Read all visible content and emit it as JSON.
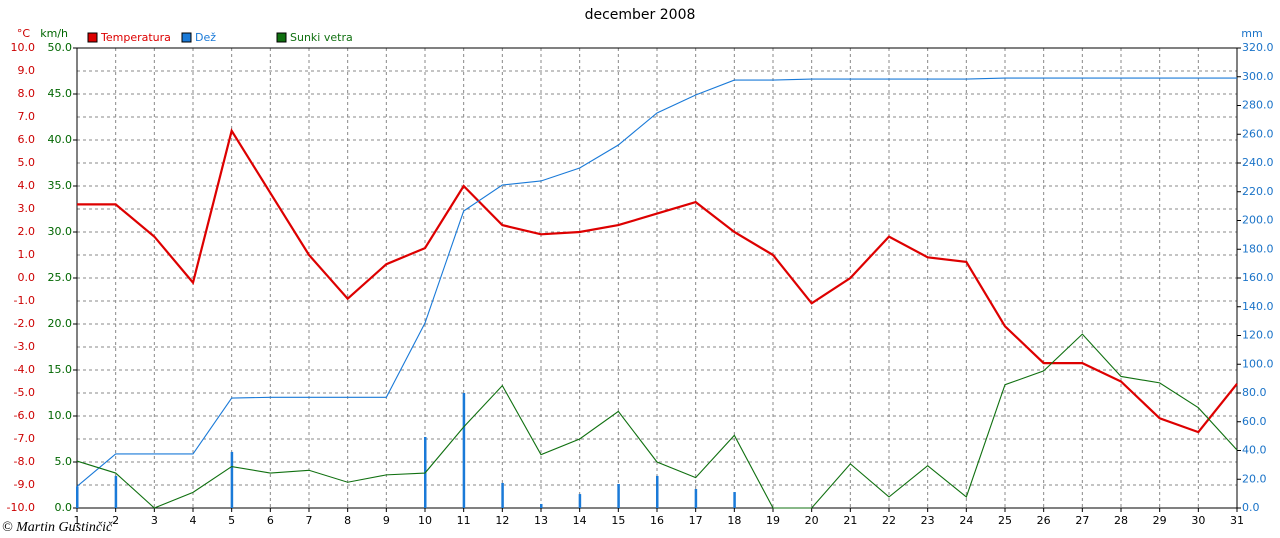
{
  "chart_data": {
    "type": "line",
    "title": "december 2008",
    "ylabel": "°C",
    "y2label": "km/h",
    "y3label": "mm",
    "copyright": "© Martin Gustinčič",
    "grid": true,
    "categories": [
      "1",
      "2",
      "3",
      "4",
      "5",
      "6",
      "7",
      "8",
      "9",
      "10",
      "11",
      "12",
      "13",
      "14",
      "15",
      "16",
      "17",
      "18",
      "19",
      "20",
      "21",
      "22",
      "23",
      "24",
      "25",
      "26",
      "27",
      "28",
      "29",
      "30",
      "31"
    ],
    "ylim": [
      -10,
      10
    ],
    "yticks": [
      {
        "value": -10,
        "label": "-10.0"
      },
      {
        "value": -9,
        "label": "-9.0"
      },
      {
        "value": -8,
        "label": "-8.0"
      },
      {
        "value": -7,
        "label": "-7.0"
      },
      {
        "value": -6,
        "label": "-6.0"
      },
      {
        "value": -5,
        "label": "-5.0"
      },
      {
        "value": -4,
        "label": "-4.0"
      },
      {
        "value": -3,
        "label": "-3.0"
      },
      {
        "value": -2,
        "label": "-2.0"
      },
      {
        "value": -1,
        "label": "-1.0"
      },
      {
        "value": 0,
        "label": "0.0"
      },
      {
        "value": 1,
        "label": "1.0"
      },
      {
        "value": 2,
        "label": "2.0"
      },
      {
        "value": 3,
        "label": "3.0"
      },
      {
        "value": 4,
        "label": "4.0"
      },
      {
        "value": 5,
        "label": "5.0"
      },
      {
        "value": 6,
        "label": "6.0"
      },
      {
        "value": 7,
        "label": "7.0"
      },
      {
        "value": 8,
        "label": "8.0"
      },
      {
        "value": 9,
        "label": "9.0"
      },
      {
        "value": 10,
        "label": "10.0"
      }
    ],
    "y2lim": [
      0,
      50
    ],
    "y2ticks": [
      {
        "value": 0,
        "label": "0.0"
      },
      {
        "value": 5,
        "label": "5.0"
      },
      {
        "value": 10,
        "label": "10.0"
      },
      {
        "value": 15,
        "label": "15.0"
      },
      {
        "value": 20,
        "label": "20.0"
      },
      {
        "value": 25,
        "label": "25.0"
      },
      {
        "value": 30,
        "label": "30.0"
      },
      {
        "value": 35,
        "label": "35.0"
      },
      {
        "value": 40,
        "label": "40.0"
      },
      {
        "value": 45,
        "label": "45.0"
      },
      {
        "value": 50,
        "label": "50.0"
      }
    ],
    "y3lim": [
      0,
      320
    ],
    "y3ticks": [
      {
        "value": 0,
        "label": "0.0"
      },
      {
        "value": 20,
        "label": "20.0"
      },
      {
        "value": 40,
        "label": "40.0"
      },
      {
        "value": 60,
        "label": "60.0"
      },
      {
        "value": 80,
        "label": "80.0"
      },
      {
        "value": 100,
        "label": "100.0"
      },
      {
        "value": 120,
        "label": "120.0"
      },
      {
        "value": 140,
        "label": "140.0"
      },
      {
        "value": 160,
        "label": "160.0"
      },
      {
        "value": 180,
        "label": "180.0"
      },
      {
        "value": 200,
        "label": "200.0"
      },
      {
        "value": 220,
        "label": "220.0"
      },
      {
        "value": 240,
        "label": "240.0"
      },
      {
        "value": 260,
        "label": "260.0"
      },
      {
        "value": 280,
        "label": "280.0"
      },
      {
        "value": 300,
        "label": "300.0"
      },
      {
        "value": 320,
        "label": "320.0"
      }
    ],
    "axis_colors": {
      "y": "#cc0000",
      "y2": "#006600",
      "y3": "#1a73c8"
    },
    "series": [
      {
        "name": "Temperatura",
        "color": "#dd0000",
        "axis": "y",
        "values": [
          3.2,
          3.2,
          1.8,
          -0.2,
          6.4,
          3.7,
          1.0,
          -0.9,
          0.6,
          1.3,
          4.0,
          2.3,
          1.9,
          2.0,
          2.3,
          2.8,
          3.3,
          2.0,
          1.0,
          -1.1,
          0.0,
          1.8,
          0.9,
          0.7,
          -2.1,
          -3.7,
          -3.7,
          -4.5,
          -6.1,
          -6.7,
          -4.6
        ]
      },
      {
        "name": "Dež",
        "color": "#1a7ad8",
        "axis": "y3",
        "values": [
          15,
          37.6,
          37.6,
          37.6,
          76.5,
          77,
          77,
          77,
          77,
          128.7,
          206.6,
          224.7,
          227.5,
          236.5,
          252.5,
          274.8,
          287.3,
          297.7,
          297.7,
          298.4,
          298.4,
          298.4,
          298.4,
          298.4,
          299.1,
          299.1,
          299.1,
          299.1,
          299.1,
          299.1,
          299.1
        ],
        "bar_values": [
          15,
          22.3,
          0,
          0,
          39,
          0,
          0,
          0,
          0,
          49.4,
          80,
          17.4,
          2.8,
          9.7,
          16.7,
          22.3,
          13.2,
          11.1,
          0,
          0,
          0,
          0,
          0,
          0,
          0,
          0,
          0,
          0,
          0,
          0,
          0
        ]
      },
      {
        "name": "Sunki vetra",
        "color": "#107010",
        "axis": "y2",
        "values": [
          5.1,
          3.8,
          0,
          1.7,
          4.5,
          3.8,
          4.1,
          2.8,
          3.6,
          3.8,
          8.8,
          13.3,
          5.8,
          7.5,
          10.5,
          5.0,
          3.3,
          7.9,
          0,
          0,
          4.8,
          1.2,
          4.6,
          1.2,
          13.4,
          14.9,
          18.9,
          14.3,
          13.6,
          10.9,
          6.3
        ]
      }
    ]
  }
}
